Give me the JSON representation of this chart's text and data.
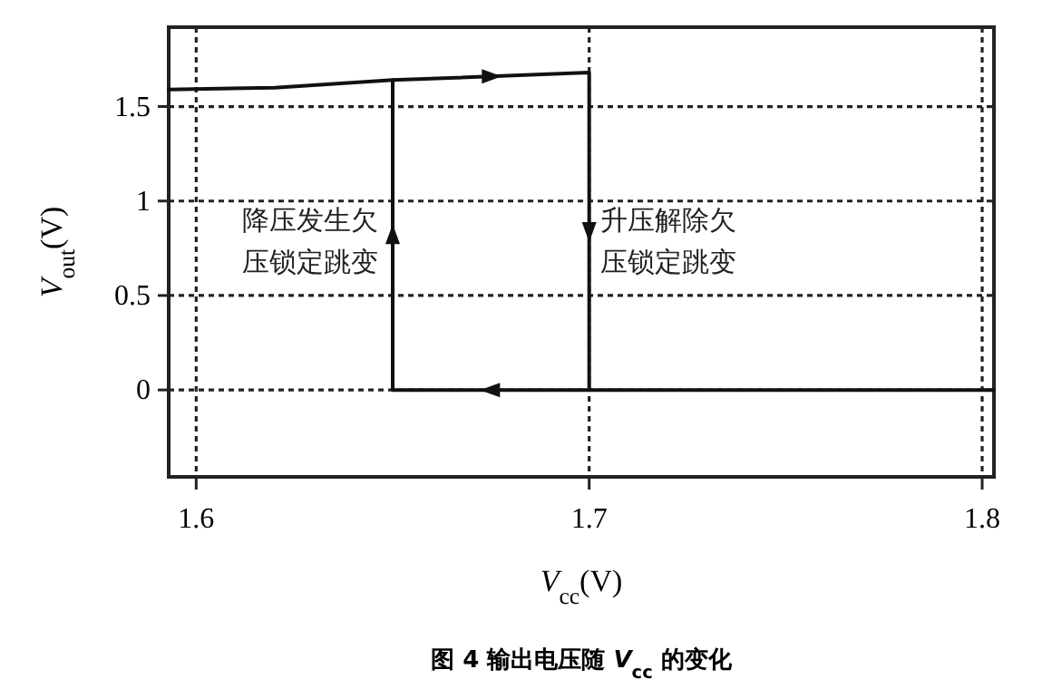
{
  "chart_data": {
    "type": "line",
    "title": "图 4  输出电压随 *V*$_{cc}$ 的变化",
    "xlabel": "*V*$_{cc}$(V)",
    "ylabel": "*V*$_{out}$(V)",
    "xlim": [
      1.593,
      1.803
    ],
    "ylim": [
      -0.46,
      1.92
    ],
    "xticks": [
      1.6,
      1.7,
      1.8
    ],
    "yticks": [
      0,
      0.5,
      1,
      1.5
    ],
    "grid": true,
    "line_style": "solid",
    "marker": "none",
    "series": [
      {
        "color": "#111111",
        "x": [
          1.593,
          1.62,
          1.65,
          1.7,
          1.7,
          1.803
        ],
        "values": [
          1.59,
          1.6,
          1.64,
          1.68,
          0,
          0
        ]
      },
      {
        "color": "#111111",
        "x": [
          1.7,
          1.65,
          1.65
        ],
        "values": [
          0,
          0,
          1.64
        ]
      }
    ],
    "annotations": [
      {
        "text": "降压发生欠压锁定跳变",
        "x": 1.65,
        "y": 0.85
      },
      {
        "text": "升压解除欠压锁定跳变",
        "x": 1.7,
        "y": 0.85
      }
    ]
  }
}
